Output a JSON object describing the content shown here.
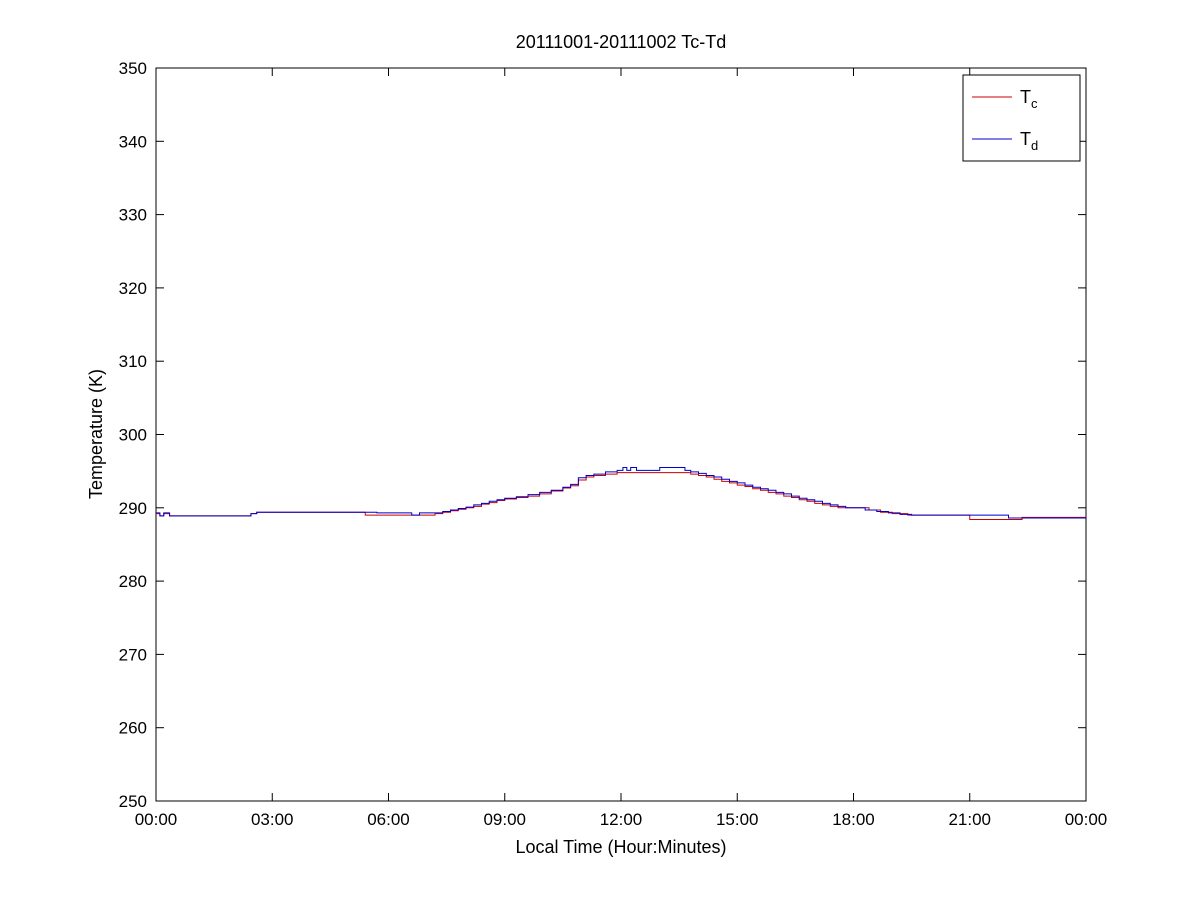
{
  "chart_data": {
    "type": "line",
    "title": "20111001-20111002 Tc-Td",
    "xlabel": "Local Time (Hour:Minutes)",
    "ylabel": "Temperature (K)",
    "xlim": [
      0,
      24
    ],
    "ylim": [
      250,
      350
    ],
    "grid": false,
    "legend_position": "top-right",
    "interpolation": "step-after",
    "x_ticks": [
      0,
      3,
      6,
      9,
      12,
      15,
      18,
      21,
      24
    ],
    "x_tick_labels": [
      "00:00",
      "03:00",
      "06:00",
      "09:00",
      "12:00",
      "15:00",
      "18:00",
      "21:00",
      "00:00"
    ],
    "y_ticks": [
      250,
      260,
      270,
      280,
      290,
      300,
      310,
      320,
      330,
      340,
      350
    ],
    "y_tick_labels": [
      "250",
      "260",
      "270",
      "280",
      "290",
      "300",
      "310",
      "320",
      "330",
      "340",
      "350"
    ],
    "axis_color": "#000000",
    "series": [
      {
        "name": "Tc",
        "label_main": "T",
        "label_sub": "c",
        "color": "#cc0000",
        "points": [
          [
            0.0,
            289.2
          ],
          [
            0.1,
            288.9
          ],
          [
            0.2,
            289.2
          ],
          [
            0.35,
            288.9
          ],
          [
            2.3,
            288.9
          ],
          [
            2.45,
            289.2
          ],
          [
            2.6,
            289.4
          ],
          [
            5.2,
            289.4
          ],
          [
            5.4,
            289.0
          ],
          [
            7.0,
            289.0
          ],
          [
            7.2,
            289.2
          ],
          [
            7.4,
            289.4
          ],
          [
            7.6,
            289.6
          ],
          [
            7.8,
            289.8
          ],
          [
            8.0,
            290.0
          ],
          [
            8.2,
            290.2
          ],
          [
            8.4,
            290.5
          ],
          [
            8.6,
            290.7
          ],
          [
            8.8,
            291.0
          ],
          [
            9.0,
            291.2
          ],
          [
            9.3,
            291.4
          ],
          [
            9.6,
            291.6
          ],
          [
            9.9,
            291.9
          ],
          [
            10.2,
            292.3
          ],
          [
            10.5,
            292.7
          ],
          [
            10.7,
            293.0
          ],
          [
            10.9,
            293.8
          ],
          [
            11.1,
            294.2
          ],
          [
            11.3,
            294.4
          ],
          [
            11.6,
            294.6
          ],
          [
            11.9,
            294.8
          ],
          [
            13.6,
            294.8
          ],
          [
            13.8,
            294.6
          ],
          [
            14.0,
            294.4
          ],
          [
            14.2,
            294.2
          ],
          [
            14.4,
            293.9
          ],
          [
            14.6,
            293.6
          ],
          [
            14.8,
            293.4
          ],
          [
            15.0,
            293.1
          ],
          [
            15.2,
            292.9
          ],
          [
            15.4,
            292.6
          ],
          [
            15.6,
            292.4
          ],
          [
            15.8,
            292.1
          ],
          [
            16.0,
            291.9
          ],
          [
            16.2,
            291.6
          ],
          [
            16.4,
            291.4
          ],
          [
            16.6,
            291.1
          ],
          [
            16.8,
            290.9
          ],
          [
            17.0,
            290.6
          ],
          [
            17.2,
            290.4
          ],
          [
            17.4,
            290.2
          ],
          [
            17.6,
            290.0
          ],
          [
            18.2,
            290.0
          ],
          [
            18.4,
            289.7
          ],
          [
            18.7,
            289.4
          ],
          [
            19.0,
            289.2
          ],
          [
            19.4,
            289.0
          ],
          [
            20.9,
            289.0
          ],
          [
            21.0,
            288.4
          ],
          [
            22.3,
            288.4
          ],
          [
            22.35,
            288.7
          ],
          [
            24.0,
            288.7
          ]
        ]
      },
      {
        "name": "Td",
        "label_main": "T",
        "label_sub": "d",
        "color": "#0000cc",
        "points": [
          [
            0.0,
            289.3
          ],
          [
            0.1,
            288.9
          ],
          [
            0.2,
            289.3
          ],
          [
            0.35,
            288.9
          ],
          [
            2.3,
            288.9
          ],
          [
            2.45,
            289.2
          ],
          [
            2.6,
            289.4
          ],
          [
            5.5,
            289.4
          ],
          [
            5.7,
            289.3
          ],
          [
            6.5,
            289.3
          ],
          [
            6.6,
            289.0
          ],
          [
            6.8,
            289.3
          ],
          [
            7.2,
            289.3
          ],
          [
            7.4,
            289.5
          ],
          [
            7.6,
            289.7
          ],
          [
            7.8,
            289.9
          ],
          [
            8.0,
            290.1
          ],
          [
            8.2,
            290.4
          ],
          [
            8.4,
            290.6
          ],
          [
            8.6,
            290.9
          ],
          [
            8.8,
            291.1
          ],
          [
            9.0,
            291.3
          ],
          [
            9.3,
            291.5
          ],
          [
            9.6,
            291.8
          ],
          [
            9.9,
            292.1
          ],
          [
            10.2,
            292.4
          ],
          [
            10.5,
            292.8
          ],
          [
            10.7,
            293.2
          ],
          [
            10.9,
            294.1
          ],
          [
            11.1,
            294.4
          ],
          [
            11.3,
            294.6
          ],
          [
            11.6,
            294.9
          ],
          [
            11.9,
            295.1
          ],
          [
            12.05,
            295.5
          ],
          [
            12.15,
            295.1
          ],
          [
            12.25,
            295.5
          ],
          [
            12.4,
            295.1
          ],
          [
            12.9,
            295.1
          ],
          [
            13.0,
            295.5
          ],
          [
            13.5,
            295.5
          ],
          [
            13.65,
            295.1
          ],
          [
            13.8,
            294.9
          ],
          [
            14.0,
            294.7
          ],
          [
            14.2,
            294.4
          ],
          [
            14.4,
            294.2
          ],
          [
            14.6,
            293.9
          ],
          [
            14.8,
            293.6
          ],
          [
            15.0,
            293.4
          ],
          [
            15.2,
            293.1
          ],
          [
            15.4,
            292.8
          ],
          [
            15.6,
            292.6
          ],
          [
            15.8,
            292.4
          ],
          [
            16.0,
            292.1
          ],
          [
            16.2,
            291.9
          ],
          [
            16.4,
            291.6
          ],
          [
            16.6,
            291.3
          ],
          [
            16.8,
            291.1
          ],
          [
            17.0,
            290.9
          ],
          [
            17.2,
            290.6
          ],
          [
            17.4,
            290.4
          ],
          [
            17.6,
            290.2
          ],
          [
            17.8,
            290.0
          ],
          [
            18.1,
            290.0
          ],
          [
            18.3,
            289.7
          ],
          [
            18.6,
            289.5
          ],
          [
            18.9,
            289.3
          ],
          [
            19.2,
            289.1
          ],
          [
            19.5,
            289.0
          ],
          [
            21.8,
            289.0
          ],
          [
            22.0,
            288.6
          ],
          [
            24.0,
            288.6
          ]
        ]
      }
    ]
  }
}
